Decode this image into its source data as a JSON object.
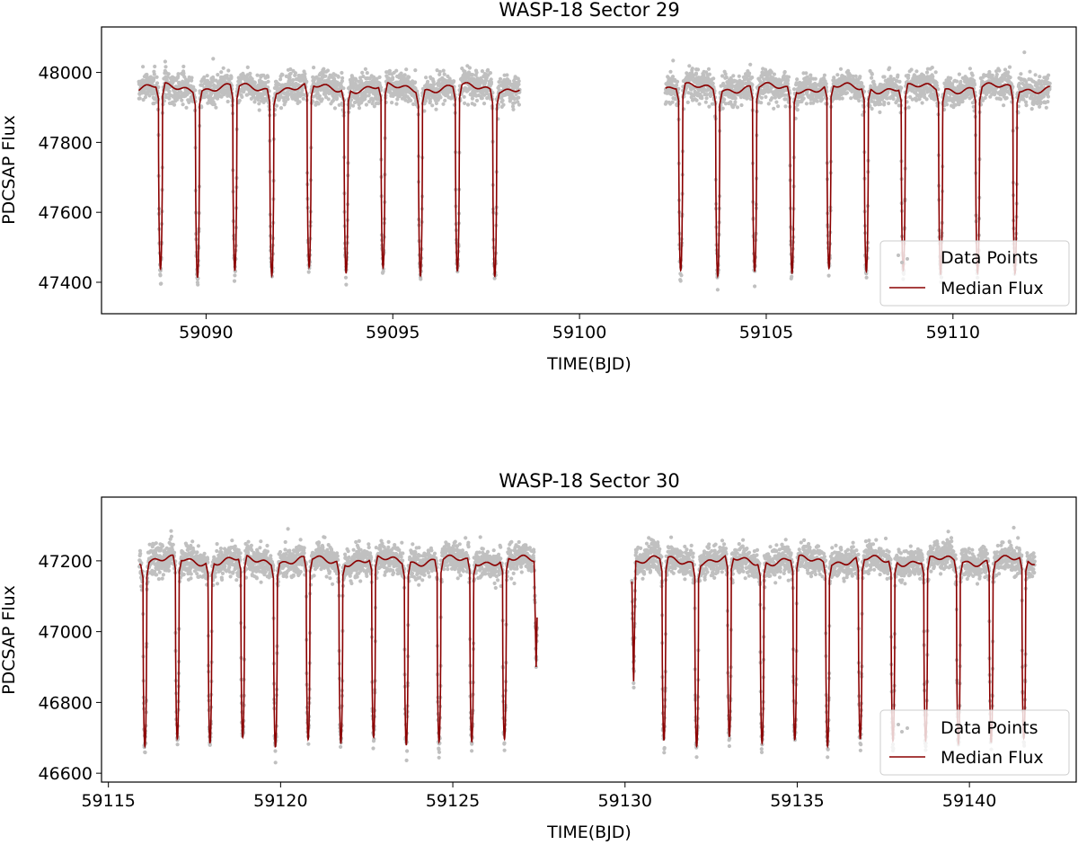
{
  "colors": {
    "data_points": "#c0c0c0",
    "median_flux": "#8b0000",
    "axes": "#000000",
    "background": "#ffffff"
  },
  "chart_data": [
    {
      "type": "scatter",
      "title": "WASP-18 Sector 29",
      "xlabel": "TIME(BJD)",
      "ylabel": "PDCSAP Flux",
      "xlim": [
        59087.2,
        59113.3
      ],
      "ylim": [
        47310,
        48130
      ],
      "xticks": [
        59090,
        59095,
        59100,
        59105,
        59110
      ],
      "yticks": [
        47400,
        47600,
        47800,
        48000
      ],
      "grid": false,
      "legend": {
        "placement": "lower right",
        "entries": [
          "Data Points",
          "Median Flux"
        ]
      },
      "segments": [
        [
          59088.2,
          59098.4
        ],
        [
          59102.3,
          59112.6
        ]
      ],
      "baseline_flux": 47955,
      "transit_depth_flux": 47430,
      "point_scatter": 30,
      "transit_times": [
        59088.78,
        59089.77,
        59090.77,
        59091.76,
        59092.76,
        59093.75,
        59094.74,
        59095.74,
        59096.73,
        59097.73,
        59102.71,
        59103.7,
        59104.69,
        59105.69,
        59106.68,
        59107.68,
        59108.67,
        59109.67,
        59110.66,
        59111.66
      ],
      "series": [
        {
          "name": "Data Points",
          "kind": "scatter"
        },
        {
          "name": "Median Flux",
          "kind": "line"
        }
      ]
    },
    {
      "type": "scatter",
      "title": "WASP-18 Sector 30",
      "xlabel": "TIME(BJD)",
      "ylabel": "PDCSAP Flux",
      "xlim": [
        59114.8,
        59143.1
      ],
      "ylim": [
        46575,
        47380
      ],
      "xticks": [
        59115,
        59120,
        59125,
        59130,
        59135,
        59140
      ],
      "yticks": [
        46600,
        46800,
        47000,
        47200
      ],
      "grid": false,
      "legend": {
        "placement": "lower right",
        "entries": [
          "Data Points",
          "Median Flux"
        ]
      },
      "segments": [
        [
          59115.9,
          59127.45
        ],
        [
          59130.2,
          59141.9
        ]
      ],
      "baseline_flux": 47200,
      "transit_depth_flux": 46690,
      "point_scatter": 30,
      "transit_times": [
        59116.06,
        59117.0,
        59117.95,
        59118.9,
        59119.85,
        59120.8,
        59121.75,
        59122.7,
        59123.65,
        59124.6,
        59125.55,
        59126.5,
        59131.13,
        59132.08,
        59133.03,
        59133.98,
        59134.93,
        59135.88,
        59136.83,
        59137.78,
        59138.73,
        59139.68,
        59140.63,
        59141.58
      ],
      "edge_dips": [
        {
          "time": 59127.42,
          "flux": 46900
        },
        {
          "time": 59130.25,
          "flux": 46850
        }
      ],
      "series": [
        {
          "name": "Data Points",
          "kind": "scatter"
        },
        {
          "name": "Median Flux",
          "kind": "line"
        }
      ]
    }
  ]
}
